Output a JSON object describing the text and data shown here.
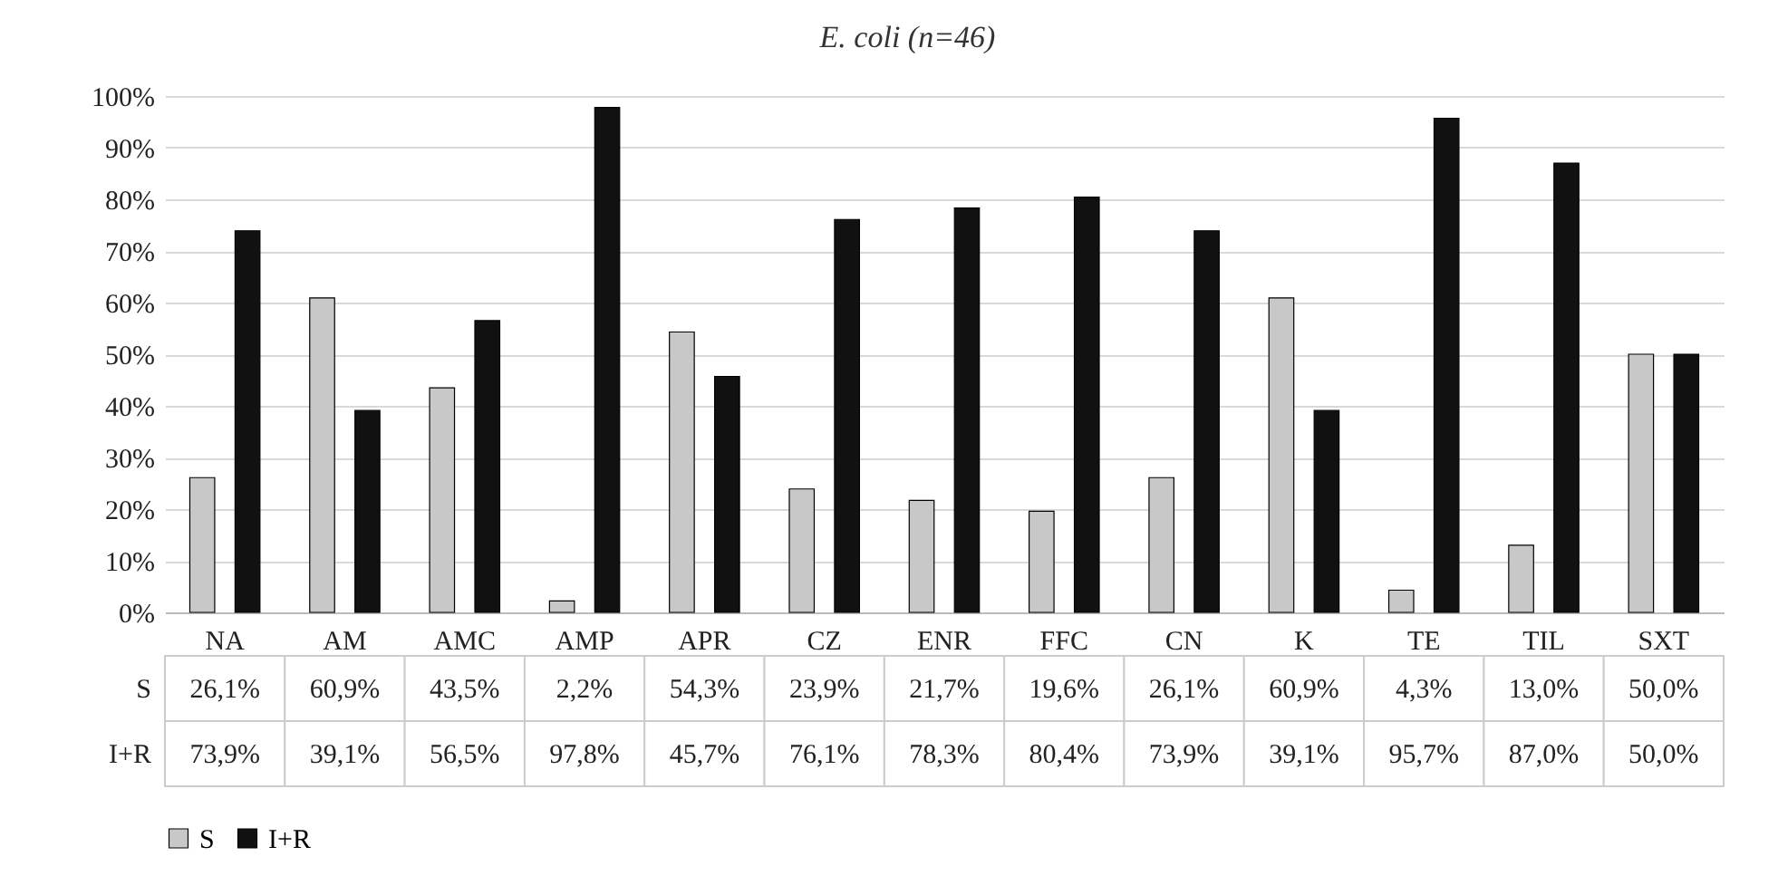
{
  "chart_data": {
    "type": "bar",
    "title": "E. coli (n=46)",
    "categories": [
      "NA",
      "AM",
      "AMC",
      "AMP",
      "APR",
      "CZ",
      "ENR",
      "FFC",
      "CN",
      "K",
      "TE",
      "TIL",
      "SXT"
    ],
    "series": [
      {
        "name": "S",
        "color": "#c8c8c8",
        "values": [
          26.1,
          60.9,
          43.5,
          2.2,
          54.3,
          23.9,
          21.7,
          19.6,
          26.1,
          60.9,
          4.3,
          13.0,
          50.0
        ],
        "value_labels": [
          "26,1%",
          "60,9%",
          "43,5%",
          "2,2%",
          "54,3%",
          "23,9%",
          "21,7%",
          "19,6%",
          "26,1%",
          "60,9%",
          "4,3%",
          "13,0%",
          "50,0%"
        ]
      },
      {
        "name": "I+R",
        "color": "#111111",
        "values": [
          73.9,
          39.1,
          56.5,
          97.8,
          45.7,
          76.1,
          78.3,
          80.4,
          73.9,
          39.1,
          95.7,
          87.0,
          50.0
        ],
        "value_labels": [
          "73,9%",
          "39,1%",
          "56,5%",
          "97,8%",
          "45,7%",
          "76,1%",
          "78,3%",
          "80,4%",
          "73,9%",
          "39,1%",
          "95,7%",
          "87,0%",
          "50,0%"
        ]
      }
    ],
    "ylim": [
      0,
      100
    ],
    "yticks": [
      {
        "value": 0,
        "label": "0%"
      },
      {
        "value": 10,
        "label": "10%"
      },
      {
        "value": 20,
        "label": "20%"
      },
      {
        "value": 30,
        "label": "30%"
      },
      {
        "value": 40,
        "label": "40%"
      },
      {
        "value": 50,
        "label": "50%"
      },
      {
        "value": 60,
        "label": "60%"
      },
      {
        "value": 70,
        "label": "70%"
      },
      {
        "value": 80,
        "label": "80%"
      },
      {
        "value": 90,
        "label": "90%"
      },
      {
        "value": 100,
        "label": "100%"
      }
    ],
    "grid": "y",
    "legend": "bottom"
  }
}
